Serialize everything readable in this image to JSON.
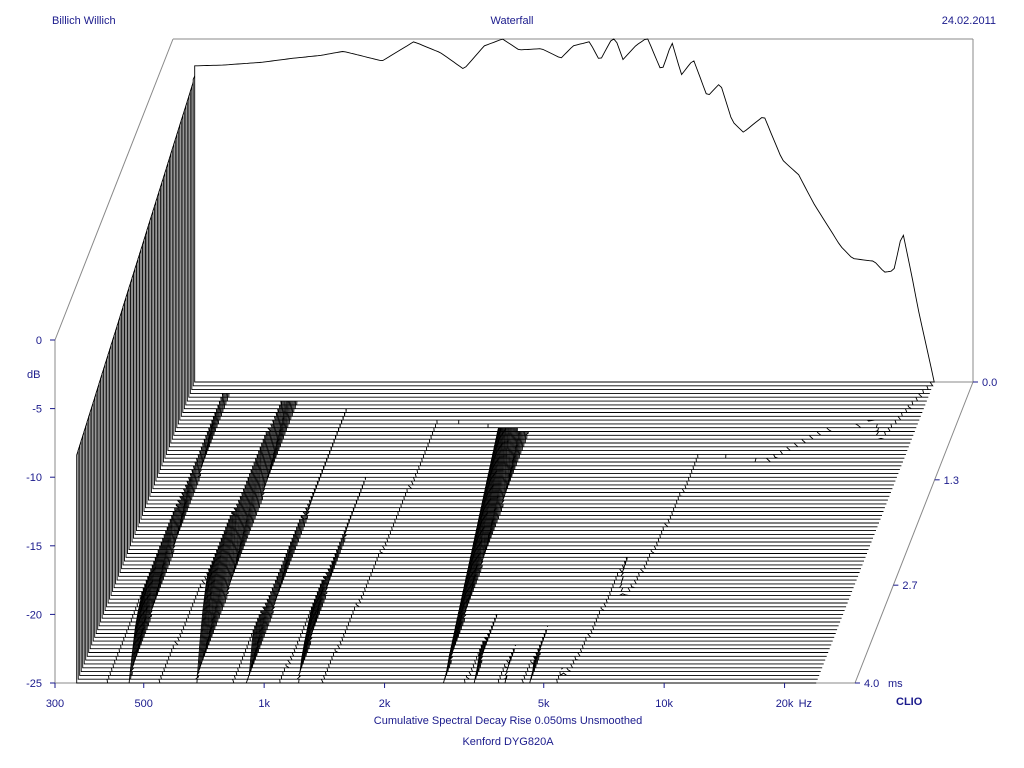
{
  "header": {
    "author": "Billich Willich",
    "title": "Waterfall",
    "date": "24.02.2011"
  },
  "footer": {
    "line1": "Cumulative Spectral Decay   Rise 0.050ms   Unsmoothed",
    "line2": "Kenford DYG820A"
  },
  "brand": "CLIO",
  "chart_data": {
    "type": "waterfall",
    "title": "Waterfall",
    "xlabel": "Hz",
    "ylabel": "dB",
    "zlabel": "ms",
    "x_scale": "log",
    "xlim": [
      300,
      30000
    ],
    "ylim": [
      -25,
      0
    ],
    "zlim": [
      0,
      4.0
    ],
    "x_ticks": [
      {
        "value": 300,
        "label": "300"
      },
      {
        "value": 500,
        "label": "500"
      },
      {
        "value": 1000,
        "label": "1k"
      },
      {
        "value": 2000,
        "label": "2k"
      },
      {
        "value": 5000,
        "label": "5k"
      },
      {
        "value": 10000,
        "label": "10k"
      },
      {
        "value": 20000,
        "label": "20k"
      }
    ],
    "y_ticks": [
      {
        "value": 0,
        "label": "0"
      },
      {
        "value": -5,
        "label": "-5"
      },
      {
        "value": -10,
        "label": "-10"
      },
      {
        "value": -15,
        "label": "-15"
      },
      {
        "value": -20,
        "label": "-20"
      },
      {
        "value": -25,
        "label": "-25"
      }
    ],
    "z_ticks": [
      {
        "value": 0.0,
        "label": "0.0"
      },
      {
        "value": 1.3,
        "label": "1.3"
      },
      {
        "value": 2.7,
        "label": "2.7"
      },
      {
        "value": 4.0,
        "label": "4.0"
      }
    ],
    "slice_count": 80,
    "initial_response": {
      "freq": [
        300,
        400,
        500,
        600,
        700,
        800,
        1000,
        1200,
        1400,
        1600,
        1800,
        2000,
        2200,
        2500,
        2800,
        3000,
        3300,
        3500,
        3800,
        4000,
        4300,
        4600,
        5000,
        5300,
        5600,
        6000,
        6500,
        7000,
        7500,
        8000,
        9000,
        10000,
        11000,
        12000,
        14000,
        15000,
        17000,
        18000,
        19000,
        20000,
        21000,
        22000,
        24000
      ],
      "db": [
        -2.0,
        -1.9,
        -1.7,
        -1.4,
        -1.2,
        -0.9,
        -1.6,
        -0.2,
        -1.0,
        -2.2,
        -0.5,
        0.0,
        -0.8,
        -0.7,
        -1.4,
        -0.5,
        -0.2,
        -1.6,
        0.3,
        -1.5,
        -0.5,
        0.1,
        -2.4,
        -0.2,
        -2.6,
        -1.5,
        -4.2,
        -3.2,
        -6.0,
        -6.8,
        -5.6,
        -8.8,
        -9.9,
        -12.0,
        -15.1,
        -16.0,
        -16.2,
        -17.0,
        -16.9,
        -14.0,
        -17.0,
        -20.0,
        -25.0
      ]
    },
    "decay_modes": [
      {
        "freq": 350,
        "peak_db": -2,
        "decay_db_per_ms": 1.4
      },
      {
        "freq": 500,
        "peak_db": -2,
        "decay_db_per_ms": 4.2
      },
      {
        "freq": 750,
        "peak_db": -3,
        "decay_db_per_ms": 3.2
      },
      {
        "freq": 1000,
        "peak_db": -6,
        "decay_db_per_ms": 2.9
      },
      {
        "freq": 1300,
        "peak_db": -2,
        "decay_db_per_ms": 4.8
      },
      {
        "freq": 3000,
        "peak_db": -4,
        "decay_db_per_ms": 4.5
      },
      {
        "freq": 3600,
        "peak_db": -4,
        "decay_db_per_ms": 4.3
      },
      {
        "freq": 4200,
        "peak_db": -3,
        "decay_db_per_ms": 5.0
      },
      {
        "freq": 5000,
        "peak_db": -2,
        "decay_db_per_ms": 4.6
      },
      {
        "freq": 5500,
        "peak_db": -3,
        "decay_db_per_ms": 5.6
      },
      {
        "freq": 6500,
        "peak_db": -5,
        "decay_db_per_ms": 7.0
      }
    ]
  }
}
